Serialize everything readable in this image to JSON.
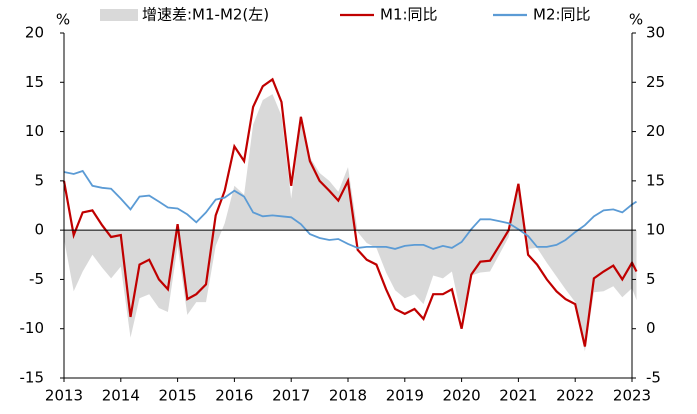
{
  "chart_data": {
    "type": "line",
    "y_unit": "%",
    "y2_unit": "%",
    "x": [
      2013.0,
      2013.17,
      2013.33,
      2013.5,
      2013.67,
      2013.83,
      2014.0,
      2014.17,
      2014.33,
      2014.5,
      2014.67,
      2014.83,
      2015.0,
      2015.17,
      2015.33,
      2015.5,
      2015.67,
      2015.83,
      2016.0,
      2016.17,
      2016.33,
      2016.5,
      2016.67,
      2016.83,
      2017.0,
      2017.17,
      2017.33,
      2017.5,
      2017.67,
      2017.83,
      2018.0,
      2018.17,
      2018.33,
      2018.5,
      2018.67,
      2018.83,
      2019.0,
      2019.17,
      2019.33,
      2019.5,
      2019.67,
      2019.83,
      2020.0,
      2020.17,
      2020.33,
      2020.5,
      2020.67,
      2020.83,
      2021.0,
      2021.17,
      2021.33,
      2021.5,
      2021.67,
      2021.83,
      2022.0,
      2022.17,
      2022.33,
      2022.5,
      2022.67,
      2022.83,
      2023.0,
      2023.08
    ],
    "series": [
      {
        "name": "增速差:M1-M2(左)",
        "type": "area",
        "color": "#d9d9d9",
        "values": [
          -0.9,
          -6.2,
          -4.2,
          -2.5,
          -3.8,
          -4.9,
          -3.7,
          -10.9,
          -6.9,
          -6.5,
          -7.9,
          -8.3,
          -1.6,
          -8.6,
          -7.3,
          -7.3,
          -1.6,
          0.7,
          4.5,
          3.6,
          10.7,
          13.2,
          13.8,
          11.6,
          3.2,
          10.9,
          7.4,
          5.8,
          5,
          3.9,
          6.4,
          -0.2,
          -1.3,
          -1.8,
          -4.3,
          -6.1,
          -6.9,
          -6.5,
          -7.5,
          -4.6,
          -4.9,
          -4.2,
          -8.8,
          -4.6,
          -4.3,
          -4.2,
          -2.4,
          -0.7,
          4.6,
          -1.9,
          -1.8,
          -3.3,
          -4.7,
          -6,
          -7.3,
          -12.3,
          -6.3,
          -6.2,
          -5.7,
          -6.8,
          -5.9,
          -7.1
        ]
      },
      {
        "name": "M1:同比",
        "type": "line",
        "axis": "y2",
        "color": "#c00000",
        "values": [
          15,
          9.5,
          11.8,
          12,
          10.5,
          9.3,
          9.5,
          1.2,
          6.5,
          7,
          5,
          4,
          10.6,
          3,
          3.5,
          4.5,
          11.5,
          14,
          18.5,
          17,
          22.5,
          24.6,
          25.3,
          23,
          14.5,
          21.5,
          17,
          15,
          14,
          13,
          15,
          8,
          7,
          6.5,
          4,
          2,
          1.5,
          2,
          1,
          3.5,
          3.5,
          4,
          0,
          5.5,
          6.8,
          6.9,
          8.5,
          10,
          14.7,
          7.5,
          6.5,
          5,
          3.8,
          3,
          2.5,
          -1.8,
          5.1,
          5.8,
          6.4,
          5,
          6.7,
          5.8
        ]
      },
      {
        "name": "M2:同比",
        "type": "line",
        "axis": "y2",
        "color": "#5b9bd5",
        "values": [
          15.9,
          15.7,
          16,
          14.5,
          14.3,
          14.2,
          13.2,
          12.1,
          13.4,
          13.5,
          12.9,
          12.3,
          12.2,
          11.6,
          10.8,
          11.8,
          13.1,
          13.3,
          14,
          13.4,
          11.8,
          11.4,
          11.5,
          11.4,
          11.3,
          10.6,
          9.6,
          9.2,
          9,
          9.1,
          8.6,
          8.2,
          8.3,
          8.3,
          8.3,
          8.1,
          8.4,
          8.5,
          8.5,
          8.1,
          8.4,
          8.2,
          8.8,
          10.1,
          11.1,
          11.1,
          10.9,
          10.7,
          10.1,
          9.4,
          8.3,
          8.3,
          8.5,
          9,
          9.8,
          10.5,
          11.4,
          12,
          12.1,
          11.8,
          12.6,
          12.9
        ]
      }
    ],
    "xlim": [
      2013,
      2023
    ],
    "xticks": [
      2013,
      2014,
      2015,
      2016,
      2017,
      2018,
      2019,
      2020,
      2021,
      2022,
      2023
    ],
    "ylim": [
      -15,
      20
    ],
    "yticks": [
      -15,
      -10,
      -5,
      0,
      5,
      10,
      15,
      20
    ],
    "y2lim": [
      -5,
      30
    ],
    "y2ticks": [
      -5,
      0,
      5,
      10,
      15,
      20,
      25,
      30
    ]
  }
}
